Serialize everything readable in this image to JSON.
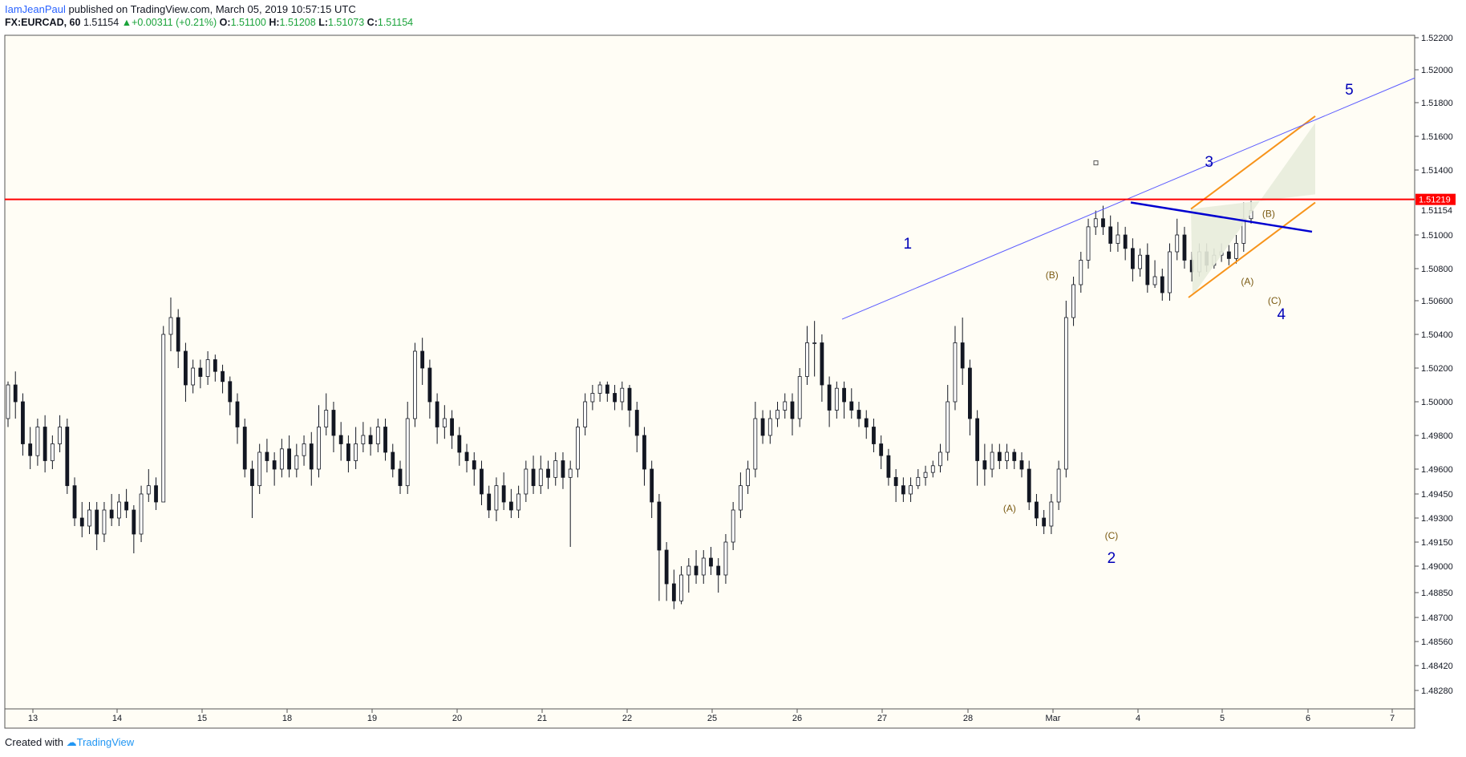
{
  "header": {
    "author": "IamJeanPaul",
    "published_text": " published on TradingView.com, March 05, 2019 10:57:15 UTC",
    "symbol": "FX:EURCAD, 60",
    "last": "1.51154",
    "change": "+0.00311 (+0.21%)",
    "o_label": "O:",
    "o_val": "1.51100",
    "h_label": "H:",
    "h_val": "1.51208",
    "l_label": "L:",
    "l_val": "1.51073",
    "c_label": "C:",
    "c_val": "1.51154"
  },
  "footer": {
    "created_with": "Created with",
    "brand": "TradingView"
  },
  "colors": {
    "bull": "#ffffff",
    "bear": "#131722",
    "wave_blue": "#0000b8",
    "corrective": "#7a5a12",
    "resistance": "#ff0000",
    "channel": "#f7931a",
    "trendline": "#5b5bff"
  },
  "chart_data": {
    "type": "candlestick",
    "y_ticks": [
      "1.52200",
      "1.52000",
      "1.51800",
      "1.51600",
      "1.51400",
      "1.51000",
      "1.50800",
      "1.50600",
      "1.50400",
      "1.50200",
      "1.50000",
      "1.49800",
      "1.49600",
      "1.49450",
      "1.49300",
      "1.49150",
      "1.49000",
      "1.48850",
      "1.48700",
      "1.48560",
      "1.48420",
      "1.48280"
    ],
    "x_ticks": [
      "13",
      "14",
      "15",
      "18",
      "19",
      "20",
      "21",
      "22",
      "25",
      "26",
      "27",
      "28",
      "Mar",
      "4",
      "5",
      "6",
      "7"
    ],
    "resistance_label": "1.51219",
    "last_price_label": "1.51154",
    "wave_labels": [
      {
        "text": "1",
        "day": 10.3,
        "price": 1.5092
      },
      {
        "text": "2",
        "day": 12.7,
        "price": 1.4902
      },
      {
        "text": "3",
        "day": 13.85,
        "price": 1.5142
      },
      {
        "text": "4",
        "day": 14.7,
        "price": 1.5049
      },
      {
        "text": "5",
        "day": 15.5,
        "price": 1.5185
      }
    ],
    "corrective_labels": [
      {
        "text": "(A)",
        "day": 11.5,
        "price": 1.4934
      },
      {
        "text": "(B)",
        "day": 12.0,
        "price": 1.5074
      },
      {
        "text": "(C)",
        "day": 12.7,
        "price": 1.4917
      },
      {
        "text": "(A)",
        "day": 14.3,
        "price": 1.507
      },
      {
        "text": "(B)",
        "day": 14.55,
        "price": 1.5111
      },
      {
        "text": "(C)",
        "day": 14.62,
        "price": 1.5058
      }
    ],
    "candles": [
      [
        1.499,
        1.501,
        1.4985,
        1.5012
      ],
      [
        1.501,
        1.5,
        1.499,
        1.5018
      ],
      [
        1.5,
        1.4975,
        1.4968,
        1.5005
      ],
      [
        1.4975,
        1.4968,
        1.496,
        1.4985
      ],
      [
        1.4968,
        1.4985,
        1.4962,
        1.499
      ],
      [
        1.4985,
        1.4965,
        1.4958,
        1.4992
      ],
      [
        1.4965,
        1.4975,
        1.496,
        1.498
      ],
      [
        1.4975,
        1.4985,
        1.497,
        1.4992
      ],
      [
        1.4985,
        1.495,
        1.4945,
        1.499
      ],
      [
        1.495,
        1.493,
        1.4925,
        1.4955
      ],
      [
        1.493,
        1.4925,
        1.4918,
        1.494
      ],
      [
        1.4925,
        1.4935,
        1.492,
        1.494
      ],
      [
        1.4935,
        1.492,
        1.491,
        1.494
      ],
      [
        1.492,
        1.4935,
        1.4915,
        1.494
      ],
      [
        1.4935,
        1.493,
        1.4925,
        1.4945
      ],
      [
        1.493,
        1.494,
        1.4925,
        1.4945
      ],
      [
        1.494,
        1.4935,
        1.493,
        1.4948
      ],
      [
        1.4935,
        1.492,
        1.4908,
        1.4938
      ],
      [
        1.492,
        1.4945,
        1.4915,
        1.495
      ],
      [
        1.4945,
        1.495,
        1.494,
        1.496
      ],
      [
        1.495,
        1.494,
        1.4935,
        1.4955
      ],
      [
        1.494,
        1.504,
        1.494,
        1.5045
      ],
      [
        1.504,
        1.505,
        1.503,
        1.5062
      ],
      [
        1.505,
        1.503,
        1.502,
        1.5055
      ],
      [
        1.503,
        1.501,
        1.5,
        1.5035
      ],
      [
        1.501,
        1.502,
        1.5005,
        1.5025
      ],
      [
        1.502,
        1.5015,
        1.5008,
        1.5025
      ],
      [
        1.5015,
        1.5025,
        1.501,
        1.503
      ],
      [
        1.5025,
        1.5018,
        1.5012,
        1.5028
      ],
      [
        1.5018,
        1.5012,
        1.5005,
        1.5022
      ],
      [
        1.5012,
        1.5,
        1.4992,
        1.5015
      ],
      [
        1.5,
        1.4985,
        1.4975,
        1.5005
      ],
      [
        1.4985,
        1.496,
        1.4955,
        1.499
      ],
      [
        1.496,
        1.495,
        1.493,
        1.4965
      ],
      [
        1.495,
        1.497,
        1.4945,
        1.4975
      ],
      [
        1.497,
        1.4965,
        1.4958,
        1.4978
      ],
      [
        1.4965,
        1.496,
        1.495,
        1.497
      ],
      [
        1.496,
        1.4972,
        1.4955,
        1.4978
      ],
      [
        1.4972,
        1.496,
        1.4955,
        1.498
      ],
      [
        1.496,
        1.4968,
        1.4955,
        1.4975
      ],
      [
        1.4968,
        1.4975,
        1.4962,
        1.498
      ],
      [
        1.4975,
        1.496,
        1.495,
        1.4982
      ],
      [
        1.496,
        1.4985,
        1.4955,
        1.4998
      ],
      [
        1.4985,
        1.4995,
        1.498,
        1.5005
      ],
      [
        1.4995,
        1.498,
        1.497,
        1.5
      ],
      [
        1.498,
        1.4975,
        1.4965,
        1.4988
      ],
      [
        1.4975,
        1.4965,
        1.4958,
        1.498
      ],
      [
        1.4965,
        1.4975,
        1.496,
        1.4985
      ],
      [
        1.4975,
        1.498,
        1.497,
        1.4988
      ],
      [
        1.498,
        1.4975,
        1.4968,
        1.4985
      ],
      [
        1.4975,
        1.4985,
        1.497,
        1.499
      ],
      [
        1.4985,
        1.497,
        1.4965,
        1.499
      ],
      [
        1.497,
        1.496,
        1.4955,
        1.4975
      ],
      [
        1.496,
        1.495,
        1.4945,
        1.4965
      ],
      [
        1.495,
        1.499,
        1.4945,
        1.5
      ],
      [
        1.499,
        1.503,
        1.4985,
        1.5035
      ],
      [
        1.503,
        1.502,
        1.501,
        1.5038
      ],
      [
        1.502,
        1.5,
        1.499,
        1.5025
      ],
      [
        1.5,
        1.4985,
        1.4975,
        1.5005
      ],
      [
        1.4985,
        1.499,
        1.4978,
        1.4998
      ],
      [
        1.499,
        1.498,
        1.4972,
        1.4995
      ],
      [
        1.498,
        1.497,
        1.4962,
        1.4985
      ],
      [
        1.497,
        1.4965,
        1.4958,
        1.4975
      ],
      [
        1.4965,
        1.496,
        1.495,
        1.497
      ],
      [
        1.496,
        1.4945,
        1.4938,
        1.4965
      ],
      [
        1.4945,
        1.4935,
        1.493,
        1.495
      ],
      [
        1.4935,
        1.495,
        1.4928,
        1.4955
      ],
      [
        1.495,
        1.494,
        1.4935,
        1.4958
      ],
      [
        1.494,
        1.4935,
        1.493,
        1.4948
      ],
      [
        1.4935,
        1.4945,
        1.493,
        1.495
      ],
      [
        1.4945,
        1.496,
        1.494,
        1.4965
      ],
      [
        1.496,
        1.495,
        1.4945,
        1.4968
      ],
      [
        1.495,
        1.496,
        1.4945,
        1.4968
      ],
      [
        1.496,
        1.4955,
        1.4948,
        1.4965
      ],
      [
        1.4955,
        1.4965,
        1.495,
        1.497
      ],
      [
        1.4965,
        1.4955,
        1.4948,
        1.497
      ],
      [
        1.4955,
        1.496,
        1.4912,
        1.4965
      ],
      [
        1.496,
        1.4985,
        1.4955,
        1.499
      ],
      [
        1.4985,
        1.5,
        1.498,
        1.5005
      ],
      [
        1.5,
        1.5005,
        1.4995,
        1.501
      ],
      [
        1.5005,
        1.501,
        1.5,
        1.5012
      ],
      [
        1.501,
        1.5005,
        1.5,
        1.5012
      ],
      [
        1.5005,
        1.5,
        1.4995,
        1.501
      ],
      [
        1.5,
        1.5008,
        1.4995,
        1.5012
      ],
      [
        1.5008,
        1.4995,
        1.4985,
        1.501
      ],
      [
        1.4995,
        1.498,
        1.497,
        1.5
      ],
      [
        1.498,
        1.496,
        1.495,
        1.4985
      ],
      [
        1.496,
        1.494,
        1.493,
        1.4965
      ],
      [
        1.494,
        1.491,
        1.488,
        1.4945
      ],
      [
        1.491,
        1.489,
        1.488,
        1.4915
      ],
      [
        1.489,
        1.488,
        1.4875,
        1.4898
      ],
      [
        1.488,
        1.4895,
        1.4878,
        1.49
      ],
      [
        1.4895,
        1.49,
        1.4885,
        1.4905
      ],
      [
        1.49,
        1.4895,
        1.489,
        1.491
      ],
      [
        1.4895,
        1.4905,
        1.489,
        1.491
      ],
      [
        1.4905,
        1.49,
        1.4895,
        1.4912
      ],
      [
        1.49,
        1.4895,
        1.4885,
        1.4905
      ],
      [
        1.4895,
        1.4915,
        1.489,
        1.492
      ],
      [
        1.4915,
        1.4935,
        1.491,
        1.494
      ],
      [
        1.4935,
        1.495,
        1.493,
        1.4958
      ],
      [
        1.495,
        1.496,
        1.4945,
        1.4965
      ],
      [
        1.496,
        1.499,
        1.4955,
        1.5
      ],
      [
        1.499,
        1.498,
        1.4975,
        1.4995
      ],
      [
        1.498,
        1.499,
        1.4975,
        1.4995
      ],
      [
        1.499,
        1.4995,
        1.4985,
        1.5
      ],
      [
        1.4995,
        1.5,
        1.499,
        1.5005
      ],
      [
        1.5,
        1.499,
        1.498,
        1.5005
      ],
      [
        1.499,
        1.5015,
        1.4985,
        1.502
      ],
      [
        1.5015,
        1.5035,
        1.501,
        1.5045
      ],
      [
        1.5035,
        1.5035,
        1.5015,
        1.5048
      ],
      [
        1.5035,
        1.501,
        1.5,
        1.504
      ],
      [
        1.501,
        1.4995,
        1.4985,
        1.5015
      ],
      [
        1.4995,
        1.5008,
        1.499,
        1.5012
      ],
      [
        1.5008,
        1.5,
        1.499,
        1.5012
      ],
      [
        1.5,
        1.4995,
        1.499,
        1.5008
      ],
      [
        1.4995,
        1.499,
        1.4985,
        1.5
      ],
      [
        1.499,
        1.4985,
        1.4978,
        1.4995
      ],
      [
        1.4985,
        1.4975,
        1.497,
        1.499
      ],
      [
        1.4975,
        1.4968,
        1.496,
        1.498
      ],
      [
        1.4968,
        1.4955,
        1.495,
        1.4972
      ],
      [
        1.4955,
        1.495,
        1.494,
        1.496
      ],
      [
        1.495,
        1.4945,
        1.494,
        1.4955
      ],
      [
        1.4945,
        1.495,
        1.494,
        1.4955
      ],
      [
        1.495,
        1.4955,
        1.4948,
        1.496
      ],
      [
        1.4955,
        1.4958,
        1.495,
        1.4962
      ],
      [
        1.4958,
        1.4962,
        1.4955,
        1.4965
      ],
      [
        1.4962,
        1.497,
        1.4958,
        1.4975
      ],
      [
        1.497,
        1.5,
        1.4965,
        1.501
      ],
      [
        1.5,
        1.5035,
        1.4995,
        1.5045
      ],
      [
        1.5035,
        1.502,
        1.501,
        1.505
      ],
      [
        1.502,
        1.499,
        1.498,
        1.5025
      ],
      [
        1.499,
        1.4965,
        1.495,
        1.4995
      ],
      [
        1.4965,
        1.496,
        1.495,
        1.4975
      ],
      [
        1.496,
        1.497,
        1.4955,
        1.4975
      ],
      [
        1.497,
        1.4965,
        1.496,
        1.4975
      ],
      [
        1.4965,
        1.497,
        1.496,
        1.4975
      ],
      [
        1.497,
        1.4965,
        1.496,
        1.4972
      ],
      [
        1.4965,
        1.496,
        1.4955,
        1.497
      ],
      [
        1.496,
        1.494,
        1.4935,
        1.4965
      ],
      [
        1.494,
        1.493,
        1.4925,
        1.4945
      ],
      [
        1.493,
        1.4925,
        1.492,
        1.4935
      ],
      [
        1.4925,
        1.494,
        1.492,
        1.4945
      ],
      [
        1.494,
        1.496,
        1.4935,
        1.4965
      ],
      [
        1.496,
        1.505,
        1.4955,
        1.506
      ],
      [
        1.505,
        1.507,
        1.5045,
        1.5075
      ],
      [
        1.507,
        1.5085,
        1.5065,
        1.509
      ],
      [
        1.5085,
        1.5105,
        1.508,
        1.511
      ],
      [
        1.5105,
        1.511,
        1.51,
        1.5115
      ],
      [
        1.511,
        1.5105,
        1.51,
        1.5118
      ],
      [
        1.5105,
        1.5095,
        1.509,
        1.5112
      ],
      [
        1.5095,
        1.51,
        1.509,
        1.5108
      ],
      [
        1.51,
        1.5092,
        1.5085,
        1.5105
      ],
      [
        1.5092,
        1.508,
        1.5072,
        1.5098
      ],
      [
        1.508,
        1.5088,
        1.5075,
        1.5092
      ],
      [
        1.5088,
        1.507,
        1.5065,
        1.5095
      ],
      [
        1.507,
        1.5075,
        1.5068,
        1.5085
      ],
      [
        1.5075,
        1.5065,
        1.506,
        1.508
      ],
      [
        1.5065,
        1.509,
        1.506,
        1.5095
      ],
      [
        1.509,
        1.51,
        1.5085,
        1.511
      ],
      [
        1.51,
        1.5085,
        1.508,
        1.5105
      ],
      [
        1.5085,
        1.5078,
        1.5072,
        1.509
      ],
      [
        1.5078,
        1.509,
        1.5075,
        1.5095
      ],
      [
        1.509,
        1.5082,
        1.5078,
        1.5095
      ],
      [
        1.5082,
        1.5088,
        1.508,
        1.5092
      ],
      [
        1.5088,
        1.509,
        1.5084,
        1.5095
      ],
      [
        1.509,
        1.5086,
        1.5082,
        1.5094
      ],
      [
        1.5086,
        1.5095,
        1.5083,
        1.51
      ],
      [
        1.5095,
        1.511,
        1.509,
        1.512
      ],
      [
        1.511,
        1.5115,
        1.5107,
        1.5121
      ]
    ]
  }
}
